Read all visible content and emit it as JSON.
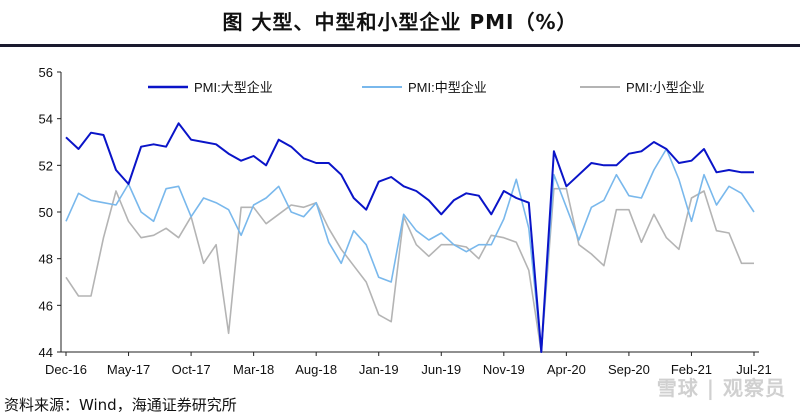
{
  "header": {
    "title": "图  大型、中型和小型企业 PMI（%）"
  },
  "footer": {
    "source": "资料来源：Wind，海通证券研究所"
  },
  "watermark": {
    "text": "雪球 | 观察员"
  },
  "colors": {
    "large": "#0a14c8",
    "medium": "#79b8ec",
    "small": "#b4b4b4",
    "axis": "#222222"
  },
  "chart_data": {
    "type": "line",
    "title": "大型、中型和小型企业 PMI（%）",
    "xlabel": "",
    "ylabel": "",
    "ylim": [
      44,
      56
    ],
    "yticks": [
      44,
      46,
      48,
      50,
      52,
      54,
      56
    ],
    "grid": false,
    "legend_position": "top",
    "x_tick_labels": [
      "Dec-16",
      "May-17",
      "Oct-17",
      "Mar-18",
      "Aug-18",
      "Jan-19",
      "Jun-19",
      "Nov-19",
      "Apr-20",
      "Sep-20",
      "Feb-21",
      "Jul-21"
    ],
    "x_tick_indices": [
      0,
      5,
      10,
      15,
      20,
      25,
      30,
      35,
      40,
      45,
      50,
      55
    ],
    "categories": [
      "Dec-16",
      "Jan-17",
      "Feb-17",
      "Mar-17",
      "Apr-17",
      "May-17",
      "Jun-17",
      "Jul-17",
      "Aug-17",
      "Sep-17",
      "Oct-17",
      "Nov-17",
      "Dec-17",
      "Jan-18",
      "Feb-18",
      "Mar-18",
      "Apr-18",
      "May-18",
      "Jun-18",
      "Jul-18",
      "Aug-18",
      "Sep-18",
      "Oct-18",
      "Nov-18",
      "Dec-18",
      "Jan-19",
      "Feb-19",
      "Mar-19",
      "Apr-19",
      "May-19",
      "Jun-19",
      "Jul-19",
      "Aug-19",
      "Sep-19",
      "Oct-19",
      "Nov-19",
      "Dec-19",
      "Jan-20",
      "Feb-20",
      "Mar-20",
      "Apr-20",
      "May-20",
      "Jun-20",
      "Jul-20",
      "Aug-20",
      "Sep-20",
      "Oct-20",
      "Nov-20",
      "Dec-20",
      "Jan-21",
      "Feb-21",
      "Mar-21",
      "Apr-21",
      "May-21",
      "Jun-21",
      "Jul-21"
    ],
    "series": [
      {
        "name": "PMI:大型企业",
        "values": [
          53.2,
          52.7,
          53.4,
          53.3,
          51.8,
          51.2,
          52.8,
          52.9,
          52.8,
          53.8,
          53.1,
          53.0,
          52.9,
          52.5,
          52.2,
          52.4,
          52.0,
          53.1,
          52.8,
          52.3,
          52.1,
          52.1,
          51.6,
          50.6,
          50.1,
          51.3,
          51.5,
          51.1,
          50.9,
          50.5,
          49.9,
          50.5,
          50.8,
          50.7,
          49.9,
          50.9,
          50.6,
          50.4,
          44.0,
          52.6,
          51.1,
          51.6,
          52.1,
          52.0,
          52.0,
          52.5,
          52.6,
          53.0,
          52.7,
          52.1,
          52.2,
          52.7,
          51.7,
          51.8,
          51.7,
          51.7
        ]
      },
      {
        "name": "PMI:中型企业",
        "values": [
          49.6,
          50.8,
          50.5,
          50.4,
          50.3,
          51.2,
          50.0,
          49.6,
          51.0,
          51.1,
          49.8,
          50.6,
          50.4,
          50.1,
          49.0,
          50.3,
          50.6,
          51.1,
          50.0,
          49.8,
          50.4,
          48.7,
          47.8,
          49.2,
          48.6,
          47.2,
          47.0,
          49.9,
          49.2,
          48.8,
          49.1,
          48.6,
          48.3,
          48.6,
          48.6,
          49.7,
          51.4,
          49.3,
          44.0,
          51.6,
          50.2,
          48.8,
          50.2,
          50.5,
          51.6,
          50.7,
          50.6,
          51.8,
          52.7,
          51.4,
          49.6,
          51.6,
          50.3,
          51.1,
          50.8,
          50.0
        ]
      },
      {
        "name": "PMI:小型企业",
        "values": [
          47.2,
          46.4,
          46.4,
          48.9,
          50.9,
          49.6,
          48.9,
          49.0,
          49.3,
          48.9,
          49.8,
          47.8,
          48.6,
          44.8,
          50.2,
          50.2,
          49.5,
          49.9,
          50.3,
          50.2,
          50.4,
          49.3,
          48.4,
          47.7,
          47.0,
          45.6,
          45.3,
          49.8,
          48.6,
          48.1,
          48.6,
          48.6,
          48.5,
          48.0,
          49.0,
          48.9,
          48.7,
          47.5,
          44.0,
          51.0,
          51.0,
          48.6,
          48.2,
          47.7,
          50.1,
          50.1,
          48.7,
          49.9,
          48.9,
          48.4,
          50.6,
          50.9,
          49.2,
          49.1,
          47.8,
          47.8
        ]
      }
    ]
  }
}
